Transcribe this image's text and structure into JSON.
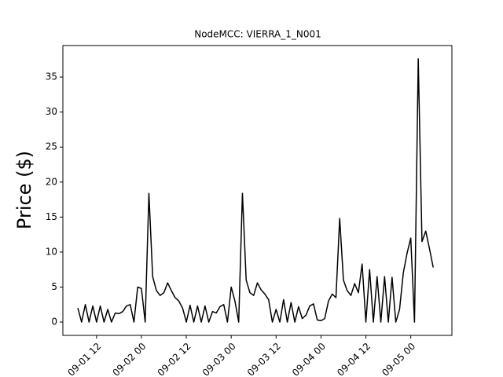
{
  "chart_data": {
    "type": "line",
    "title": "NodeMCC: VIERRA_1_N001",
    "y_label": "Price ($)",
    "x": [
      "09-01 07",
      "09-01 08",
      "09-01 09",
      "09-01 10",
      "09-01 11",
      "09-01 12",
      "09-01 13",
      "09-01 14",
      "09-01 15",
      "09-01 16",
      "09-01 17",
      "09-01 18",
      "09-01 19",
      "09-01 20",
      "09-01 21",
      "09-01 22",
      "09-01 23",
      "09-02 00",
      "09-02 01",
      "09-02 02",
      "09-02 03",
      "09-02 04",
      "09-02 05",
      "09-02 06",
      "09-02 07",
      "09-02 08",
      "09-02 09",
      "09-02 10",
      "09-02 11",
      "09-02 12",
      "09-02 13",
      "09-02 14",
      "09-02 15",
      "09-02 16",
      "09-02 17",
      "09-02 18",
      "09-02 19",
      "09-02 20",
      "09-02 21",
      "09-02 22",
      "09-02 23",
      "09-03 00",
      "09-03 01",
      "09-03 02",
      "09-03 03",
      "09-03 04",
      "09-03 05",
      "09-03 06",
      "09-03 07",
      "09-03 08",
      "09-03 09",
      "09-03 10",
      "09-03 11",
      "09-03 12",
      "09-03 13",
      "09-03 14",
      "09-03 15",
      "09-03 16",
      "09-03 17",
      "09-03 18",
      "09-03 19",
      "09-03 20",
      "09-03 21",
      "09-03 22",
      "09-03 23",
      "09-04 00",
      "09-04 01",
      "09-04 02",
      "09-04 03",
      "09-04 04",
      "09-04 05",
      "09-04 06",
      "09-04 07",
      "09-04 08",
      "09-04 09",
      "09-04 10",
      "09-04 11",
      "09-04 12",
      "09-04 13",
      "09-04 14",
      "09-04 15",
      "09-04 16",
      "09-04 17",
      "09-04 18",
      "09-04 19",
      "09-04 20",
      "09-04 21",
      "09-04 22",
      "09-04 23",
      "09-05 00",
      "09-05 01",
      "09-05 02",
      "09-05 03",
      "09-05 04",
      "09-05 05",
      "09-05 06"
    ],
    "series": [
      {
        "color": "#000000",
        "values": [
          2.0,
          0,
          2.5,
          0,
          2.3,
          0,
          2.3,
          0,
          1.8,
          0,
          1.3,
          1.2,
          1.5,
          2.3,
          2.5,
          0,
          5.0,
          4.8,
          0,
          18.4,
          6.5,
          4.5,
          3.8,
          4.2,
          5.6,
          4.5,
          3.5,
          3.0,
          2.0,
          0,
          2.4,
          0,
          2.3,
          0,
          2.3,
          0,
          1.5,
          1.3,
          2.2,
          2.5,
          0,
          5.0,
          3.0,
          0,
          18.4,
          6.0,
          4.2,
          3.8,
          5.6,
          4.6,
          4.0,
          3.2,
          0,
          1.8,
          0,
          3.2,
          0,
          2.8,
          0,
          2.2,
          0.5,
          1.0,
          2.3,
          2.6,
          0.3,
          0.2,
          0.5,
          3.0,
          4.0,
          3.5,
          14.8,
          6.0,
          4.5,
          3.8,
          5.5,
          4.2,
          8.3,
          0,
          7.5,
          0,
          6.5,
          0,
          6.5,
          0,
          6.4,
          0,
          1.8,
          7.0,
          9.8,
          12.0,
          0,
          37.6,
          11.5,
          13.0,
          10.5,
          7.8
        ]
      }
    ],
    "xlim": [
      "09-01 03",
      "09-05 11"
    ],
    "xticks": [
      "09-01 12",
      "09-02 00",
      "09-02 12",
      "09-03 00",
      "09-03 12",
      "09-04 00",
      "09-04 12",
      "09-05 00"
    ],
    "ylim": [
      -1.9,
      39.5
    ],
    "yticks": [
      0,
      5,
      10,
      15,
      20,
      25,
      30,
      35
    ]
  }
}
